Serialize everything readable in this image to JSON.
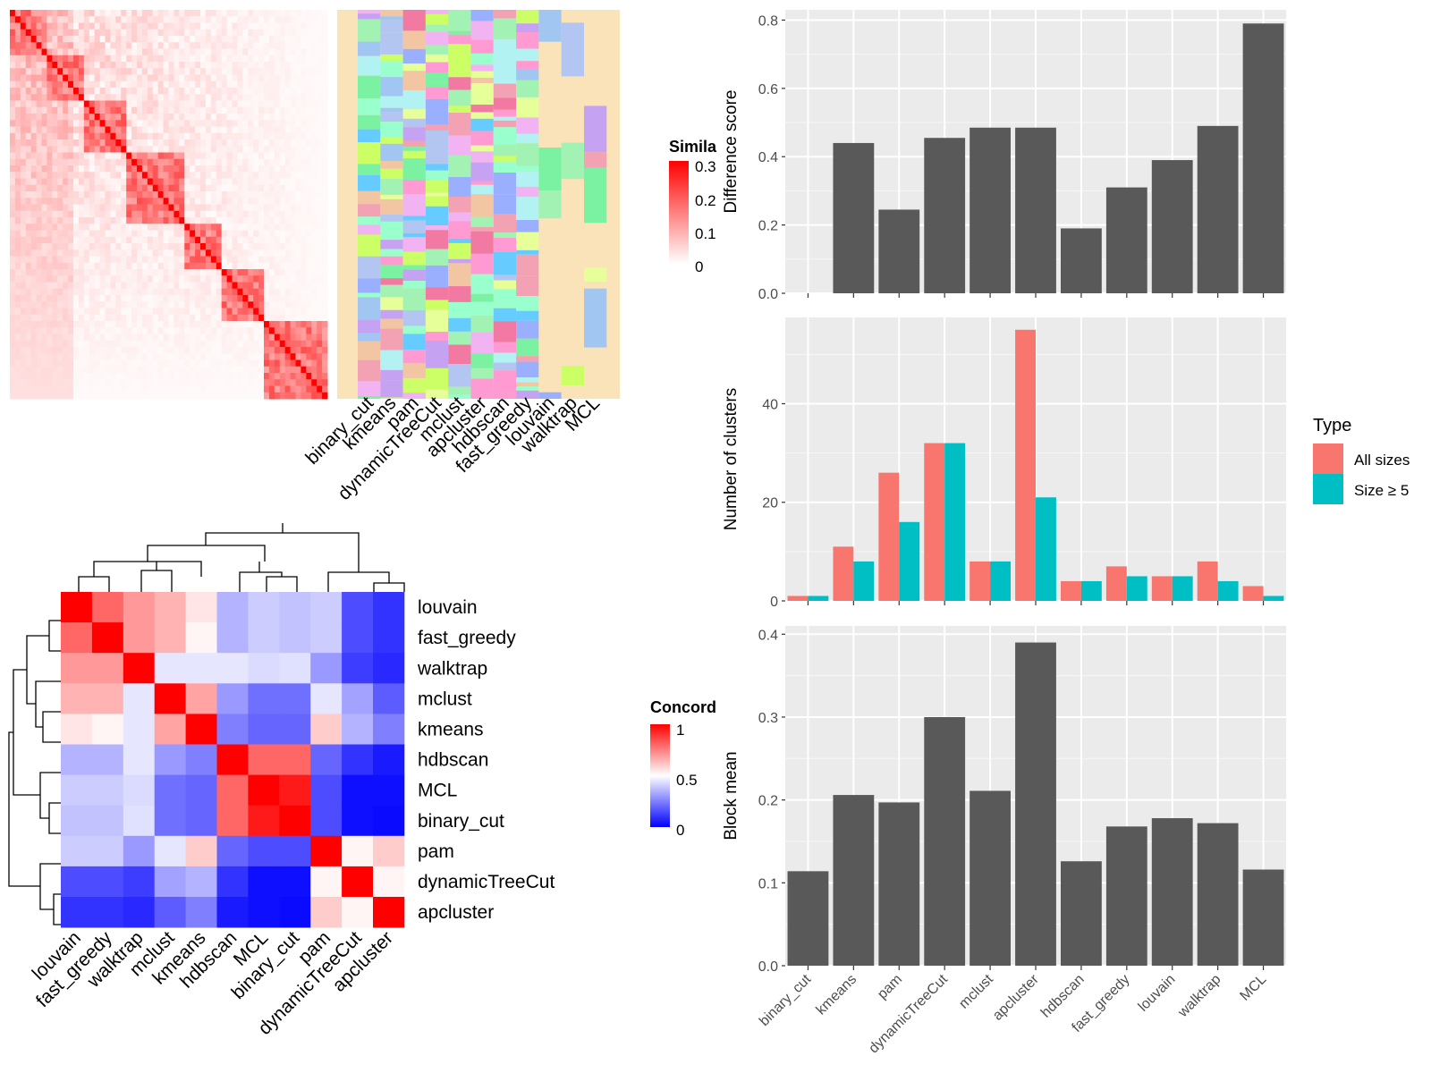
{
  "top_heatmap": {
    "legend_title": "Simila",
    "legend_ticks": [
      "0.3",
      "0.2",
      "0.1",
      "0"
    ],
    "colors": {
      "low": "#ffffff",
      "high": "#ff0000"
    },
    "annotation_columns": [
      "binary_cut",
      "kmeans",
      "pam",
      "dynamicTreeCut",
      "mclust",
      "apcluster",
      "hdbscan",
      "fast_greedy",
      "louvain",
      "walktrap",
      "MCL"
    ],
    "annotation_background": "#fbe3b9"
  },
  "concordance": {
    "legend_title": "Concord",
    "legend_ticks": [
      "1",
      "0.5",
      "0"
    ],
    "colors": {
      "low": "#0000ff",
      "mid": "#ffffff",
      "high": "#ff0000"
    },
    "row_labels": [
      "louvain",
      "fast_greedy",
      "walktrap",
      "mclust",
      "kmeans",
      "hdbscan",
      "MCL",
      "binary_cut",
      "pam",
      "dynamicTreeCut",
      "apcluster"
    ],
    "col_labels": [
      "louvain",
      "fast_greedy",
      "walktrap",
      "mclust",
      "kmeans",
      "hdbscan",
      "MCL",
      "binary_cut",
      "pam",
      "dynamicTreeCut",
      "apcluster"
    ]
  },
  "right_legend": {
    "title": "Type",
    "items": [
      {
        "label": "All sizes",
        "color": "#f8766d"
      },
      {
        "label": "Size ≥ 5",
        "color": "#00bfc4"
      }
    ]
  },
  "chart_data": [
    {
      "type": "heatmap",
      "title": "",
      "rows": [
        "louvain",
        "fast_greedy",
        "walktrap",
        "mclust",
        "kmeans",
        "hdbscan",
        "MCL",
        "binary_cut",
        "pam",
        "dynamicTreeCut",
        "apcluster"
      ],
      "cols": [
        "louvain",
        "fast_greedy",
        "walktrap",
        "mclust",
        "kmeans",
        "hdbscan",
        "MCL",
        "binary_cut",
        "pam",
        "dynamicTreeCut",
        "apcluster"
      ],
      "values": [
        [
          1.0,
          0.8,
          0.7,
          0.65,
          0.55,
          0.35,
          0.4,
          0.38,
          0.4,
          0.15,
          0.1
        ],
        [
          0.8,
          1.0,
          0.7,
          0.65,
          0.52,
          0.35,
          0.4,
          0.38,
          0.4,
          0.15,
          0.1
        ],
        [
          0.7,
          0.7,
          1.0,
          0.45,
          0.45,
          0.45,
          0.43,
          0.44,
          0.3,
          0.12,
          0.08
        ],
        [
          0.65,
          0.65,
          0.45,
          1.0,
          0.68,
          0.3,
          0.22,
          0.22,
          0.45,
          0.32,
          0.18
        ],
        [
          0.55,
          0.52,
          0.45,
          0.68,
          1.0,
          0.25,
          0.2,
          0.2,
          0.6,
          0.35,
          0.25
        ],
        [
          0.35,
          0.35,
          0.45,
          0.3,
          0.25,
          1.0,
          0.8,
          0.8,
          0.2,
          0.1,
          0.05
        ],
        [
          0.4,
          0.4,
          0.43,
          0.22,
          0.2,
          0.8,
          1.0,
          0.95,
          0.15,
          0.03,
          0.03
        ],
        [
          0.38,
          0.38,
          0.44,
          0.22,
          0.2,
          0.8,
          0.95,
          1.0,
          0.15,
          0.03,
          0.02
        ],
        [
          0.4,
          0.4,
          0.3,
          0.45,
          0.6,
          0.2,
          0.15,
          0.15,
          1.0,
          0.52,
          0.6
        ],
        [
          0.15,
          0.15,
          0.12,
          0.32,
          0.35,
          0.1,
          0.03,
          0.03,
          0.52,
          1.0,
          0.52
        ],
        [
          0.1,
          0.1,
          0.08,
          0.18,
          0.25,
          0.05,
          0.03,
          0.02,
          0.6,
          0.52,
          1.0
        ]
      ],
      "range": [
        0,
        1
      ]
    },
    {
      "type": "bar",
      "title": "",
      "categories": [
        "binary_cut",
        "kmeans",
        "pam",
        "dynamicTreeCut",
        "mclust",
        "apcluster",
        "hdbscan",
        "fast_greedy",
        "louvain",
        "walktrap",
        "MCL"
      ],
      "values": [
        0,
        0.44,
        0.245,
        0.455,
        0.485,
        0.485,
        0.19,
        0.31,
        0.39,
        0.49,
        0.79
      ],
      "xlabel": "",
      "ylabel": "Difference score",
      "ylim": [
        0,
        0.83
      ],
      "yticks": [
        "0.0",
        "0.2",
        "0.4",
        "0.6",
        "0.8"
      ],
      "bar_color": "#595959",
      "grid": true,
      "x_tick_labels": false
    },
    {
      "type": "bar",
      "title": "",
      "categories": [
        "binary_cut",
        "kmeans",
        "pam",
        "dynamicTreeCut",
        "mclust",
        "apcluster",
        "hdbscan",
        "fast_greedy",
        "louvain",
        "walktrap",
        "MCL"
      ],
      "series": [
        {
          "name": "All sizes",
          "values": [
            1,
            11,
            26,
            32,
            8,
            55,
            4,
            7,
            5,
            8,
            3
          ]
        },
        {
          "name": "Size ≥ 5",
          "values": [
            1,
            8,
            16,
            32,
            8,
            21,
            4,
            5,
            5,
            4,
            1
          ]
        }
      ],
      "xlabel": "",
      "ylabel": "Number of clusters",
      "ylim": [
        0,
        57.5
      ],
      "yticks": [
        "0",
        "20",
        "40"
      ],
      "grid": true,
      "x_tick_labels": false,
      "legend": "right"
    },
    {
      "type": "bar",
      "title": "",
      "categories": [
        "binary_cut",
        "kmeans",
        "pam",
        "dynamicTreeCut",
        "mclust",
        "apcluster",
        "hdbscan",
        "fast_greedy",
        "louvain",
        "walktrap",
        "MCL"
      ],
      "values": [
        0.114,
        0.206,
        0.197,
        0.3,
        0.211,
        0.39,
        0.126,
        0.168,
        0.178,
        0.172,
        0.116
      ],
      "xlabel": "",
      "ylabel": "Block mean",
      "ylim": [
        0,
        0.41
      ],
      "yticks": [
        "0.0",
        "0.1",
        "0.2",
        "0.3",
        "0.4"
      ],
      "bar_color": "#595959",
      "grid": true,
      "x_tick_labels": true
    }
  ]
}
